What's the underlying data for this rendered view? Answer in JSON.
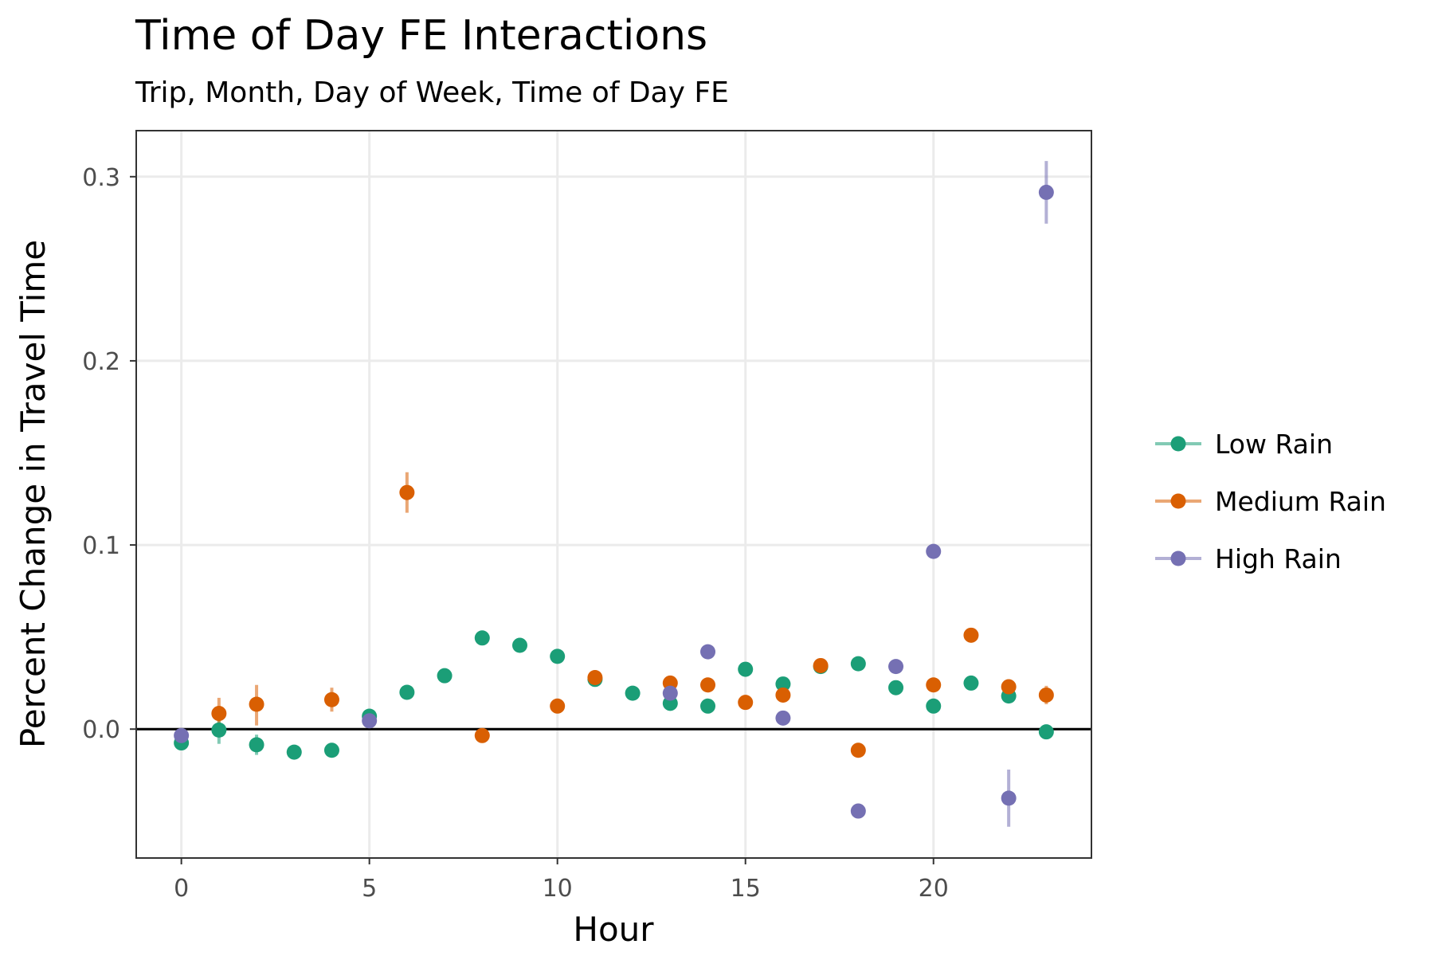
{
  "chart_data": {
    "type": "scatter",
    "title": "Time of Day FE Interactions",
    "subtitle": "Trip, Month, Day of Week, Time of Day FE",
    "xlabel": "Hour",
    "ylabel": "Percent Change in Travel Time",
    "xlim": [
      -1.2,
      24.2
    ],
    "ylim": [
      -0.07,
      0.325
    ],
    "x_ticks": [
      0,
      5,
      10,
      15,
      20
    ],
    "y_ticks": [
      0.0,
      0.1,
      0.2,
      0.3
    ],
    "y_tick_labels": [
      "0.0",
      "0.1",
      "0.2",
      "0.3"
    ],
    "reference_line_y": 0,
    "grid": true,
    "legend_position": "right",
    "series": [
      {
        "name": "Low Rain",
        "color": "#1b9e77",
        "points": [
          {
            "x": 0,
            "y": -0.0075,
            "lo": -0.0095,
            "hi": -0.0055
          },
          {
            "x": 1,
            "y": -0.0005,
            "lo": -0.008,
            "hi": 0.006
          },
          {
            "x": 2,
            "y": -0.0085,
            "lo": -0.014,
            "hi": -0.003
          },
          {
            "x": 3,
            "y": -0.0125,
            "lo": -0.0145,
            "hi": -0.0105
          },
          {
            "x": 4,
            "y": -0.0115,
            "lo": -0.0135,
            "hi": -0.0095
          },
          {
            "x": 5,
            "y": 0.007,
            "lo": 0.005,
            "hi": 0.009
          },
          {
            "x": 6,
            "y": 0.02,
            "lo": 0.018,
            "hi": 0.022
          },
          {
            "x": 7,
            "y": 0.029,
            "lo": 0.027,
            "hi": 0.031
          },
          {
            "x": 8,
            "y": 0.0495,
            "lo": 0.0475,
            "hi": 0.0515
          },
          {
            "x": 9,
            "y": 0.0455,
            "lo": 0.0435,
            "hi": 0.0475
          },
          {
            "x": 10,
            "y": 0.0395,
            "lo": 0.0375,
            "hi": 0.0415
          },
          {
            "x": 11,
            "y": 0.027,
            "lo": 0.025,
            "hi": 0.029
          },
          {
            "x": 12,
            "y": 0.0195,
            "lo": 0.0175,
            "hi": 0.0215
          },
          {
            "x": 13,
            "y": 0.014,
            "lo": 0.012,
            "hi": 0.016
          },
          {
            "x": 14,
            "y": 0.0125,
            "lo": 0.0105,
            "hi": 0.0145
          },
          {
            "x": 15,
            "y": 0.0325,
            "lo": 0.0305,
            "hi": 0.0345
          },
          {
            "x": 16,
            "y": 0.0245,
            "lo": 0.0225,
            "hi": 0.0265
          },
          {
            "x": 17,
            "y": 0.034,
            "lo": 0.032,
            "hi": 0.036
          },
          {
            "x": 18,
            "y": 0.0355,
            "lo": 0.0335,
            "hi": 0.0375
          },
          {
            "x": 19,
            "y": 0.0225,
            "lo": 0.0205,
            "hi": 0.0245
          },
          {
            "x": 20,
            "y": 0.0125,
            "lo": 0.0105,
            "hi": 0.0145
          },
          {
            "x": 21,
            "y": 0.025,
            "lo": 0.023,
            "hi": 0.027
          },
          {
            "x": 22,
            "y": 0.018,
            "lo": 0.016,
            "hi": 0.02
          },
          {
            "x": 23,
            "y": -0.0015,
            "lo": -0.0035,
            "hi": 0.0005
          }
        ]
      },
      {
        "name": "Medium Rain",
        "color": "#d95f02",
        "points": [
          {
            "x": 1,
            "y": 0.0085,
            "lo": 0.001,
            "hi": 0.017
          },
          {
            "x": 2,
            "y": 0.0135,
            "lo": 0.002,
            "hi": 0.024
          },
          {
            "x": 4,
            "y": 0.016,
            "lo": 0.0095,
            "hi": 0.0225
          },
          {
            "x": 6,
            "y": 0.1285,
            "lo": 0.1175,
            "hi": 0.1395
          },
          {
            "x": 8,
            "y": -0.0035,
            "lo": -0.0055,
            "hi": -0.0015
          },
          {
            "x": 10,
            "y": 0.0125,
            "lo": 0.0105,
            "hi": 0.0145
          },
          {
            "x": 11,
            "y": 0.028,
            "lo": 0.026,
            "hi": 0.03
          },
          {
            "x": 13,
            "y": 0.025,
            "lo": 0.023,
            "hi": 0.027
          },
          {
            "x": 14,
            "y": 0.024,
            "lo": 0.022,
            "hi": 0.026
          },
          {
            "x": 15,
            "y": 0.0145,
            "lo": 0.0125,
            "hi": 0.0165
          },
          {
            "x": 16,
            "y": 0.0185,
            "lo": 0.0165,
            "hi": 0.0205
          },
          {
            "x": 17,
            "y": 0.0345,
            "lo": 0.0325,
            "hi": 0.0365
          },
          {
            "x": 18,
            "y": -0.0115,
            "lo": -0.0155,
            "hi": -0.0075
          },
          {
            "x": 20,
            "y": 0.024,
            "lo": 0.022,
            "hi": 0.026
          },
          {
            "x": 21,
            "y": 0.051,
            "lo": 0.049,
            "hi": 0.053
          },
          {
            "x": 22,
            "y": 0.023,
            "lo": 0.021,
            "hi": 0.025
          },
          {
            "x": 23,
            "y": 0.0185,
            "lo": 0.0135,
            "hi": 0.0235
          }
        ]
      },
      {
        "name": "High Rain",
        "color": "#7570b3",
        "points": [
          {
            "x": 0,
            "y": -0.0035,
            "lo": -0.0055,
            "hi": -0.0015
          },
          {
            "x": 5,
            "y": 0.0045,
            "lo": 0.0025,
            "hi": 0.0065
          },
          {
            "x": 13,
            "y": 0.0195,
            "lo": 0.0175,
            "hi": 0.0215
          },
          {
            "x": 14,
            "y": 0.042,
            "lo": 0.04,
            "hi": 0.044
          },
          {
            "x": 16,
            "y": 0.006,
            "lo": 0.004,
            "hi": 0.008
          },
          {
            "x": 18,
            "y": -0.0445,
            "lo": -0.0465,
            "hi": -0.0425
          },
          {
            "x": 19,
            "y": 0.034,
            "lo": 0.032,
            "hi": 0.036
          },
          {
            "x": 20,
            "y": 0.0965,
            "lo": 0.0945,
            "hi": 0.0985
          },
          {
            "x": 22,
            "y": -0.0375,
            "lo": -0.053,
            "hi": -0.022
          },
          {
            "x": 23,
            "y": 0.2915,
            "lo": 0.2745,
            "hi": 0.3085
          }
        ]
      }
    ]
  }
}
